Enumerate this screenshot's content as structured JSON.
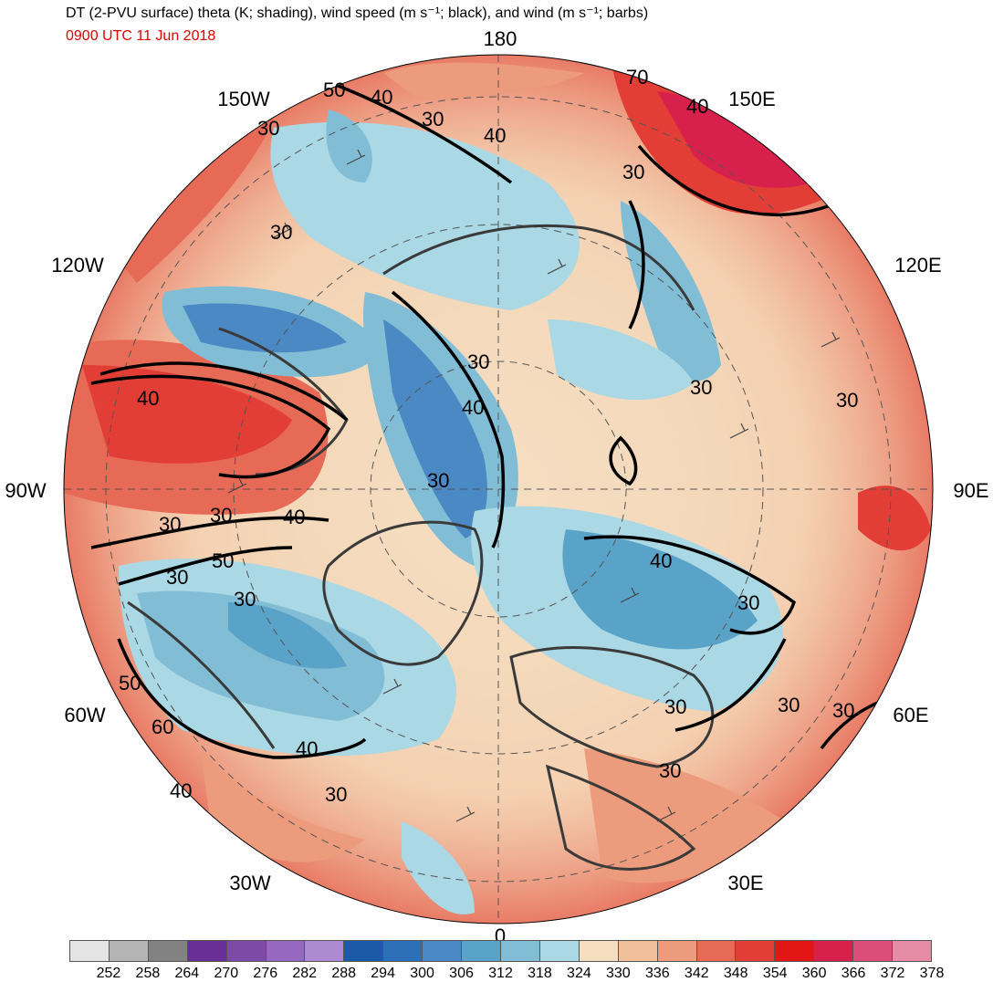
{
  "header": {
    "title": "DT (2-PVU surface) theta (K; shading), wind speed (m s⁻¹; black), and wind (m s⁻¹; barbs)",
    "valid_time": "0900 UTC 11 Jun 2018"
  },
  "map": {
    "projection": "north-polar-stereographic",
    "longitude_labels": [
      {
        "text": "180",
        "lon": 180
      },
      {
        "text": "150E",
        "lon": 150
      },
      {
        "text": "120E",
        "lon": 120
      },
      {
        "text": "90E",
        "lon": 90
      },
      {
        "text": "60E",
        "lon": 60
      },
      {
        "text": "30E",
        "lon": 30
      },
      {
        "text": "0",
        "lon": 0
      },
      {
        "text": "30W",
        "lon": -30
      },
      {
        "text": "60W",
        "lon": -60
      },
      {
        "text": "90W",
        "lon": -90
      },
      {
        "text": "120W",
        "lon": -120
      },
      {
        "text": "150W",
        "lon": -150
      }
    ],
    "wind_speed_contour_labels": [
      "30",
      "40",
      "50",
      "60",
      "70"
    ]
  },
  "colorbar": {
    "unit": "K",
    "labels": [
      "252",
      "258",
      "264",
      "270",
      "276",
      "282",
      "288",
      "294",
      "300",
      "306",
      "312",
      "318",
      "324",
      "330",
      "336",
      "342",
      "348",
      "354",
      "360",
      "366",
      "372",
      "378"
    ],
    "colors": [
      "#e4e4e4",
      "#b4b4b4",
      "#828282",
      "#6a2f96",
      "#7d4aa8",
      "#9668c0",
      "#ad8ad2",
      "#1a5aa6",
      "#2c6fb6",
      "#4a89c4",
      "#5aa3c8",
      "#82bdd6",
      "#aad8e4",
      "#f5ddc0",
      "#f2bf9c",
      "#ec9c7c",
      "#e66a56",
      "#e23e36",
      "#e31616",
      "#d8204c",
      "#dc4e7a",
      "#e68ca6"
    ]
  }
}
